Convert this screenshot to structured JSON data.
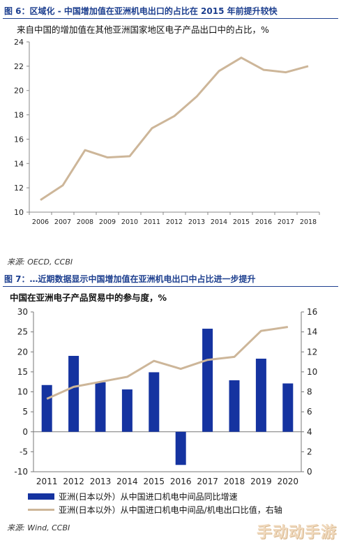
{
  "figure6": {
    "title": "图 6：区域化 - 中国增加值在亚洲机电出口的占比在 2015 年前提升较快",
    "subtitle": "来自中国的增加值在其他亚洲国家地区电子产品出口中的占比，%",
    "source": "来源: OECD, CCBI",
    "colors": {
      "line": "#cdb699",
      "axis": "#888888"
    }
  },
  "figure7": {
    "title": "图 7：…近期数据显示中国增加值在亚洲机电出口中占比进一步提升",
    "subtitle": "中国在亚洲电子产品贸易中的参与度，%",
    "source": "来源: Wind, CCBI",
    "legend": {
      "bars": "亚洲(日本以外）从中国进口机电中间品同比增速",
      "line": "亚洲(日本以外）从中国进口机电中间品/机电出口比值，右轴"
    },
    "colors": {
      "bar": "#1533a0",
      "line": "#cdb699"
    }
  },
  "watermark": "手动动手游",
  "chart_data": [
    {
      "type": "line",
      "x": [
        "2006",
        "2007",
        "2008",
        "2009",
        "2010",
        "2011",
        "2012",
        "2013",
        "2014",
        "2015",
        "2016",
        "2017",
        "2018"
      ],
      "series": [
        {
          "values": [
            11.0,
            12.2,
            15.1,
            14.5,
            14.6,
            16.9,
            17.9,
            19.5,
            21.6,
            22.7,
            21.7,
            21.5,
            22.0
          ]
        }
      ],
      "ylim": [
        10,
        24
      ],
      "yticks": [
        10,
        12,
        14,
        16,
        18,
        20,
        22,
        24
      ],
      "grid": false
    },
    {
      "type": "bar",
      "categories": [
        "2011",
        "2012",
        "2013",
        "2014",
        "2015",
        "2016",
        "2017",
        "2018",
        "2019",
        "2020"
      ],
      "series": [
        {
          "name": "亚洲(日本以外）从中国进口机电中间品同比增速",
          "type": "bar",
          "axis": "left",
          "values": [
            11.7,
            19.0,
            12.4,
            10.6,
            14.9,
            -8.3,
            25.8,
            12.9,
            18.3,
            12.1
          ]
        },
        {
          "name": "亚洲(日本以外）从中国进口机电中间品/机电出口比值，右轴",
          "type": "line",
          "axis": "right",
          "values": [
            7.3,
            8.5,
            9.0,
            9.5,
            11.1,
            10.3,
            11.2,
            11.5,
            14.1,
            14.5
          ]
        }
      ],
      "ylim_left": [
        -10,
        30
      ],
      "yticks_left": [
        -10,
        -5,
        0,
        5,
        10,
        15,
        20,
        25,
        30
      ],
      "ylim_right": [
        0,
        16
      ],
      "yticks_right": [
        0,
        2,
        4,
        6,
        8,
        10,
        12,
        14,
        16
      ],
      "legend_position": "bottom"
    }
  ]
}
